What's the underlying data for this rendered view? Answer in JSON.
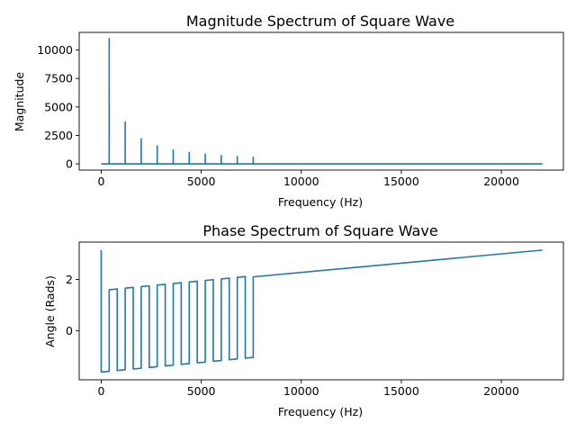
{
  "chart_data": [
    {
      "type": "line",
      "title": "Magnitude Spectrum of Square Wave",
      "xlabel": "Frequency (Hz)",
      "ylabel": "Magnitude",
      "xlim": [
        -1100,
        23100
      ],
      "ylim": [
        -550,
        11550
      ],
      "xticks": [
        0,
        5000,
        10000,
        15000,
        20000
      ],
      "xtick_labels": [
        "0",
        "5000",
        "10000",
        "15000",
        "20000"
      ],
      "yticks": [
        0,
        2500,
        5000,
        7500,
        10000
      ],
      "ytick_labels": [
        "0",
        "2500",
        "5000",
        "7500",
        "10000"
      ],
      "grid": false,
      "color": "#1f77b4",
      "series": [
        {
          "x": [
            0,
            399,
            400,
            401,
            1199,
            1200,
            1201,
            1999,
            2000,
            2001,
            2799,
            2800,
            2801,
            3599,
            3600,
            3601,
            4399,
            4400,
            4401,
            5199,
            5200,
            5201,
            5999,
            6000,
            6001,
            6799,
            6800,
            6801,
            7599,
            7600,
            7601,
            22050
          ],
          "values": [
            0,
            0,
            11000,
            0,
            0,
            3670,
            0,
            0,
            2200,
            0,
            0,
            1570,
            0,
            0,
            1220,
            0,
            0,
            1000,
            0,
            0,
            850,
            0,
            0,
            730,
            0,
            0,
            650,
            0,
            0,
            580,
            0,
            0
          ]
        }
      ]
    },
    {
      "type": "line",
      "title": "Phase Spectrum of Square Wave",
      "xlabel": "Frequency (Hz)",
      "ylabel": "Angle (Rads)",
      "xlim": [
        -1100,
        23100
      ],
      "ylim": [
        -1.9,
        3.45
      ],
      "xticks": [
        0,
        5000,
        10000,
        15000,
        20000
      ],
      "xtick_labels": [
        "0",
        "5000",
        "10000",
        "15000",
        "20000"
      ],
      "yticks": [
        0,
        2
      ],
      "ytick_labels": [
        "0",
        "2"
      ],
      "grid": false,
      "color": "#1f77b4",
      "series": [
        {
          "x": [
            0,
            0,
            400,
            400,
            800,
            800,
            1200,
            1200,
            1600,
            1600,
            2000,
            2000,
            2400,
            2400,
            2800,
            2800,
            3200,
            3200,
            3600,
            3600,
            4000,
            4000,
            4400,
            4400,
            4800,
            4800,
            5200,
            5200,
            5600,
            5600,
            6000,
            6000,
            6400,
            6400,
            6800,
            6800,
            7200,
            7200,
            7600,
            7600,
            22050
          ],
          "values": [
            3.14,
            -1.6,
            -1.57,
            1.6,
            1.63,
            -1.54,
            -1.51,
            1.66,
            1.69,
            -1.48,
            -1.45,
            1.72,
            1.75,
            -1.42,
            -1.39,
            1.78,
            1.81,
            -1.36,
            -1.33,
            1.84,
            1.87,
            -1.3,
            -1.27,
            1.9,
            1.93,
            -1.24,
            -1.21,
            1.96,
            1.99,
            -1.18,
            -1.15,
            2.02,
            2.05,
            -1.12,
            -1.09,
            2.08,
            2.11,
            -1.06,
            -1.03,
            2.1,
            3.14
          ]
        }
      ]
    }
  ]
}
